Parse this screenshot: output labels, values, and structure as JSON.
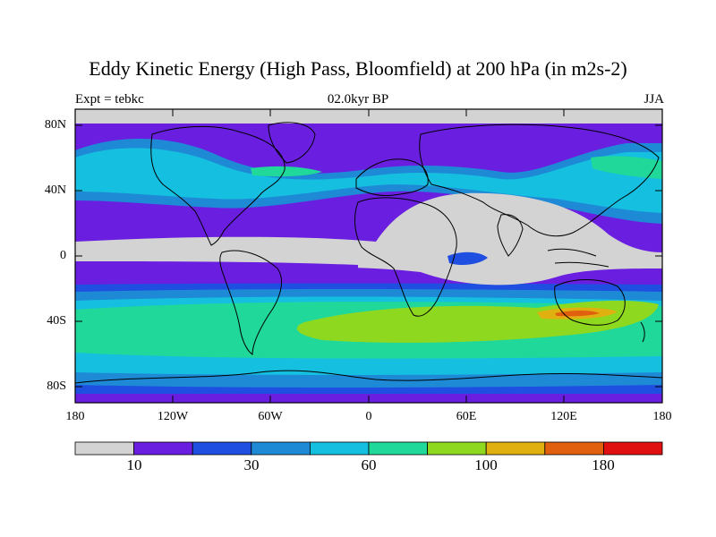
{
  "title": "Eddy Kinetic Energy (High Pass, Bloomfield) at 200 hPa (in m2s-2)",
  "subtitle_left": "Expt = tebkc",
  "subtitle_center": "02.0kyr BP",
  "subtitle_right": "JJA",
  "lat_labels": [
    "80N",
    "40N",
    "0",
    "40S",
    "80S"
  ],
  "lon_labels": [
    "180",
    "120W",
    "60W",
    "0",
    "60E",
    "120E",
    "180"
  ],
  "colorbar": {
    "labels": [
      "10",
      "30",
      "60",
      "100",
      "180"
    ],
    "colors": [
      "#d3d3d3",
      "#6a1fe0",
      "#1f4fe0",
      "#1e8ad6",
      "#15bfe0",
      "#20d89a",
      "#8fd820",
      "#e0b010",
      "#e06010",
      "#e01010"
    ]
  }
}
